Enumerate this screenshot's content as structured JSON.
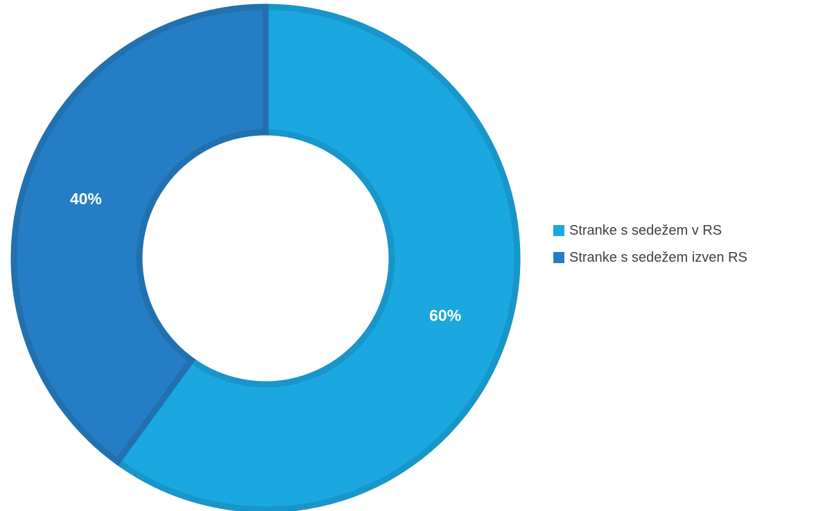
{
  "chart_data": {
    "type": "pie",
    "donut": true,
    "title": "",
    "legend_position": "right",
    "slices": [
      {
        "label": "Stranke s sedežem v RS",
        "value": 60,
        "data_label": "60%",
        "color": "#1BA8E0",
        "edge_color": "#1895C9"
      },
      {
        "label": "Stranke s sedežem izven RS",
        "value": 40,
        "data_label": "40%",
        "color": "#257EC5",
        "edge_color": "#2170AF"
      }
    ]
  }
}
